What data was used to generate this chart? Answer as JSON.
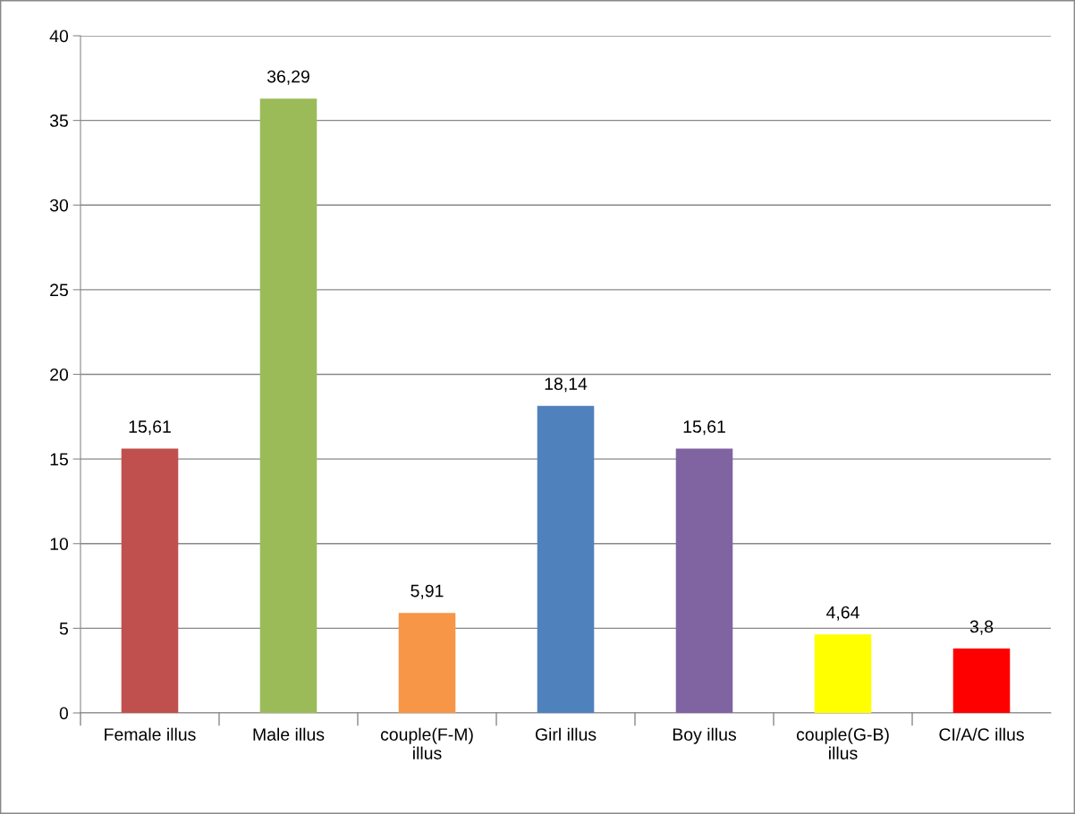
{
  "chart_data": {
    "type": "bar",
    "categories": [
      "Female illus",
      "Male illus",
      "couple(F-M)\nillus",
      "Girl illus",
      "Boy illus",
      "couple(G-B)\nillus",
      "CI/A/C illus"
    ],
    "values": [
      15.61,
      36.29,
      5.91,
      18.14,
      15.61,
      4.64,
      3.8
    ],
    "colors": [
      "#c0504d",
      "#9bbb59",
      "#f79646",
      "#4f81bd",
      "#8064a2",
      "#ffff00",
      "#ff0000"
    ],
    "value_labels": [
      "15,61",
      "36,29",
      "5,91",
      "18,14",
      "15,61",
      "4,64",
      "3,8"
    ],
    "ylim": [
      0,
      40
    ],
    "yticks": [
      0,
      5,
      10,
      15,
      20,
      25,
      30,
      35,
      40
    ],
    "grid": "y",
    "legend": false
  }
}
